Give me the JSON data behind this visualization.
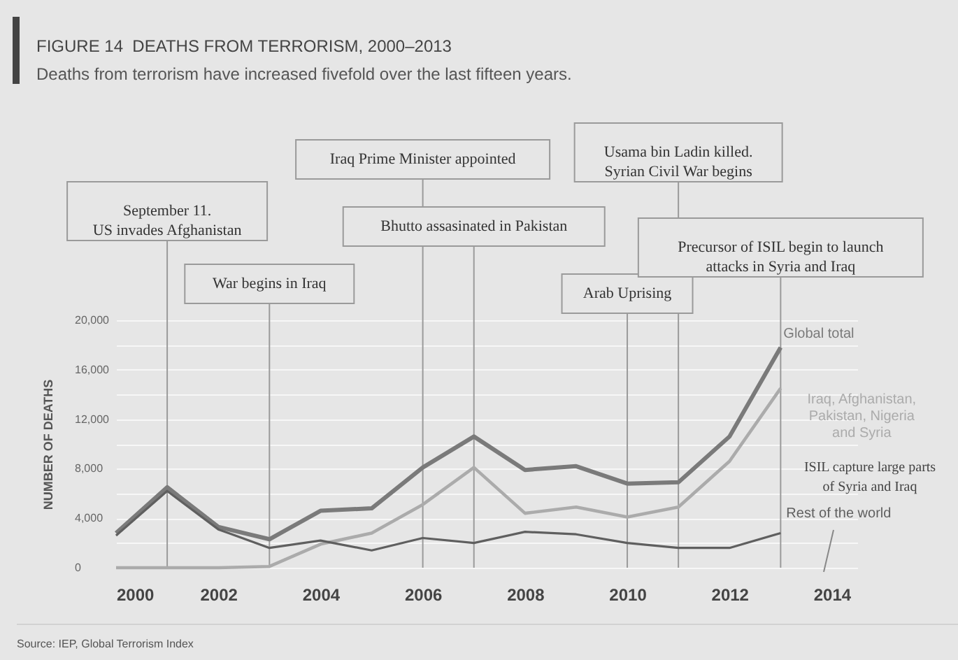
{
  "chart_data": {
    "type": "line",
    "title": "FIGURE 14  DEATHS FROM TERRORISM, 2000–2013",
    "subtitle": "Deaths from terrorism have increased fivefold over the last fifteen years.",
    "ylabel": "NUMBER OF DEATHS",
    "x": [
      2000,
      2001,
      2002,
      2003,
      2004,
      2005,
      2006,
      2007,
      2008,
      2009,
      2010,
      2011,
      2012,
      2013
    ],
    "series": [
      {
        "name": "Global total",
        "color": "#7a7a7a",
        "values": [
          2800,
          6500,
          3300,
          2300,
          4600,
          4800,
          8100,
          10600,
          7900,
          8200,
          6800,
          6900,
          10600,
          17800
        ]
      },
      {
        "name": "Iraq, Afghanistan, Pakistan, Nigeria and Syria",
        "color": "#ababab",
        "values": [
          0,
          0,
          0,
          100,
          1900,
          2800,
          5100,
          8100,
          4400,
          4900,
          4100,
          4900,
          8600,
          14500
        ]
      },
      {
        "name": "Rest of the world",
        "color": "#5f5f5f",
        "values": [
          2600,
          6200,
          3100,
          1600,
          2200,
          1400,
          2400,
          2000,
          2900,
          2700,
          2000,
          1600,
          1600,
          2800
        ]
      }
    ],
    "xlim": [
      2000,
      2014.5
    ],
    "xticks": [
      2000,
      2002,
      2004,
      2006,
      2008,
      2010,
      2012,
      2014
    ],
    "ylim": [
      0,
      20000
    ],
    "yticks": [
      0,
      {
        "value": 2000,
        "label": null
      },
      "4,000",
      {
        "value": 6000,
        "label": null
      },
      {
        "value": 8000,
        "label": "8,000"
      },
      {
        "value": 10000,
        "label": null
      },
      {
        "value": 12000,
        "label": "12,000"
      },
      {
        "value": 14000,
        "label": null
      },
      {
        "value": 16000,
        "label": "16,000"
      },
      {
        "value": 18000,
        "label": null
      },
      {
        "value": 20000,
        "label": "20,000"
      }
    ],
    "grid": "y",
    "legend": false,
    "marker": "none",
    "line_style": "solid",
    "ref_lines": [
      {
        "axis": "x",
        "value": 2001,
        "label": "September 11.\nUS invades Afghanistan"
      },
      {
        "axis": "x",
        "value": 2003,
        "label": "War begins in Iraq"
      },
      {
        "axis": "x",
        "value": 2006,
        "label": "Iraq Prime Minister appointed"
      },
      {
        "axis": "x",
        "value": 2007,
        "label": "Bhutto assasinated in Pakistan"
      },
      {
        "axis": "x",
        "value": 2010,
        "label": "Arab Uprising"
      },
      {
        "axis": "x",
        "value": 2011,
        "label": "Usama bin Ladin killed.\nSyrian Civil War begins"
      },
      {
        "axis": "x",
        "value": 2013,
        "label": "Precursor of ISIL begin to launch\nattacks in Syria and Iraq"
      }
    ],
    "annotations": [
      "ISIL capture large parts\nof Syria and Iraq",
      "Source: IEP, Global Terrorism Index"
    ]
  }
}
